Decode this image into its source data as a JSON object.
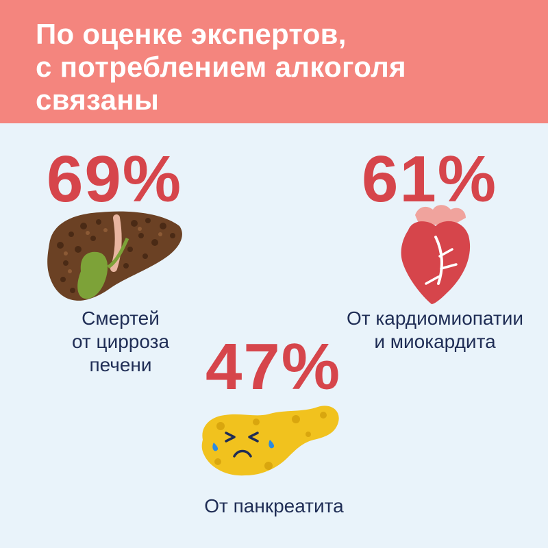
{
  "header": {
    "title_lines": [
      "По оценке экспертов,",
      "с потреблением алкоголя",
      "связаны"
    ]
  },
  "stats": {
    "liver": {
      "value": "69%",
      "label_lines": [
        "Смертей",
        "от цирроза",
        "печени"
      ],
      "icon": "liver-icon"
    },
    "heart": {
      "value": "61%",
      "label_lines": [
        "От кардиомиопатии",
        "и миокардита"
      ],
      "icon": "heart-icon"
    },
    "pancreas": {
      "value": "47%",
      "label_lines": [
        "От панкреатита"
      ],
      "icon": "pancreas-icon"
    }
  },
  "colors": {
    "header_bg": "#f4857e",
    "page_bg": "#e9f3fa",
    "accent_red": "#d6454b",
    "text_navy": "#1f2d55"
  }
}
